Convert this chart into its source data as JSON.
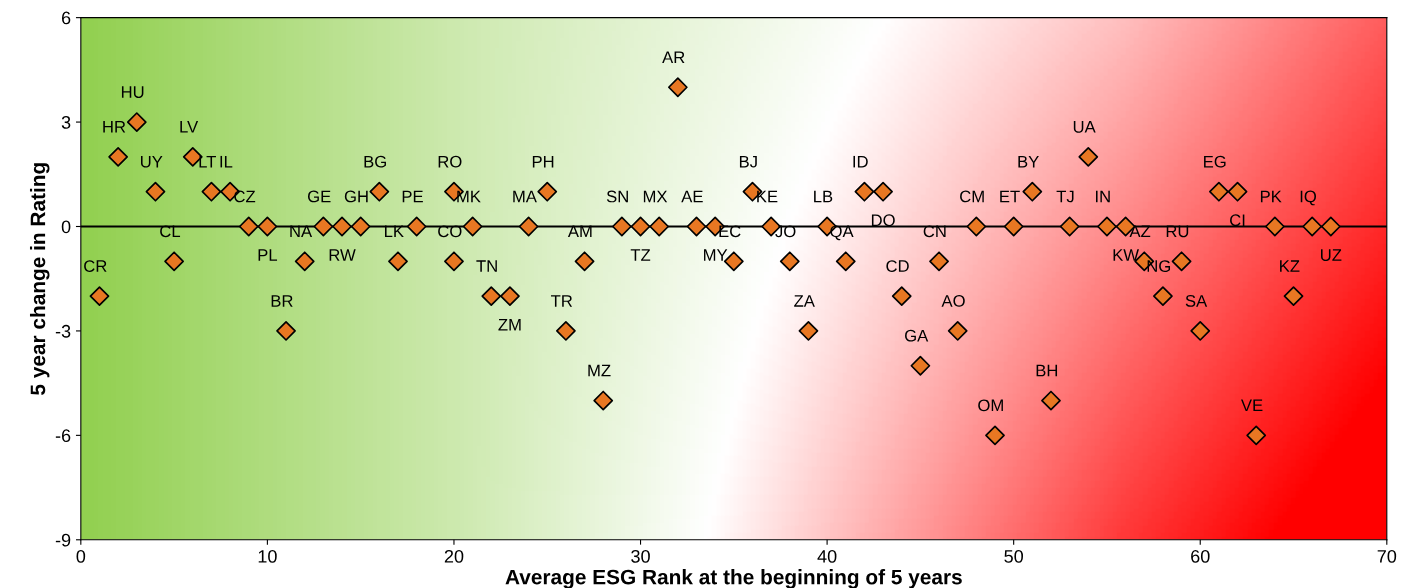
{
  "chart_data": {
    "type": "scatter",
    "xlabel": "Average ESG Rank at the beginning of 5 years",
    "ylabel": "5 year change in Rating",
    "xlim": [
      0,
      70
    ],
    "xticks": [
      0,
      10,
      20,
      30,
      40,
      50,
      60,
      70
    ],
    "ylim": [
      -9,
      6
    ],
    "yticks": [
      -9,
      -6,
      -3,
      0,
      3,
      6
    ],
    "grid": false,
    "marker": "diamond",
    "series": [
      {
        "color": "#e87722",
        "x": [
          1,
          2,
          3,
          4,
          5,
          6,
          7,
          8,
          9,
          10,
          11,
          12,
          13,
          14,
          15,
          16,
          17,
          18,
          20,
          20,
          21,
          22,
          23,
          24,
          25,
          26,
          27,
          28,
          29,
          30,
          31,
          32,
          33,
          34,
          35,
          36,
          37,
          38,
          39,
          40,
          41,
          42,
          43,
          44,
          45,
          46,
          47,
          48,
          49,
          50,
          51,
          52,
          53,
          54,
          55,
          56,
          57,
          58,
          59,
          60,
          61,
          62,
          63,
          64,
          65,
          66,
          67
        ],
        "values": [
          -2,
          2,
          3,
          1,
          -1,
          2,
          1,
          1,
          0,
          0,
          -3,
          -1,
          0,
          0,
          0,
          1,
          -1,
          0,
          1,
          -1,
          0,
          -2,
          -2,
          0,
          1,
          -3,
          -1,
          -5,
          0,
          0,
          0,
          4,
          0,
          0,
          -1,
          1,
          0,
          -1,
          -3,
          0,
          -1,
          1,
          1,
          -2,
          -4,
          -1,
          -3,
          0,
          -6,
          0,
          1,
          -5,
          0,
          2,
          0,
          0,
          -1,
          -2,
          -1,
          -3,
          1,
          1,
          -6,
          0,
          -2,
          0,
          0
        ]
      }
    ],
    "ref_lines": [
      {
        "axis": "y",
        "value": 0,
        "color": "#000000",
        "line_style": "solid"
      }
    ],
    "annotations": [
      {
        "text": "CR",
        "x": 1,
        "y": -2
      },
      {
        "text": "HR",
        "x": 2,
        "y": 2
      },
      {
        "text": "HU",
        "x": 3,
        "y": 3
      },
      {
        "text": "UY",
        "x": 4,
        "y": 1
      },
      {
        "text": "CL",
        "x": 5,
        "y": -1
      },
      {
        "text": "LV",
        "x": 6,
        "y": 2
      },
      {
        "text": "LT",
        "x": 7,
        "y": 1
      },
      {
        "text": "IL",
        "x": 8,
        "y": 1
      },
      {
        "text": "CZ",
        "x": 9,
        "y": 0
      },
      {
        "text": "PL",
        "x": 10,
        "y": 0
      },
      {
        "text": "BR",
        "x": 11,
        "y": -3
      },
      {
        "text": "NA",
        "x": 12,
        "y": -1
      },
      {
        "text": "GE",
        "x": 13,
        "y": 0
      },
      {
        "text": "RW",
        "x": 14,
        "y": 0
      },
      {
        "text": "GH",
        "x": 15,
        "y": 0
      },
      {
        "text": "BG",
        "x": 16,
        "y": 1
      },
      {
        "text": "LK",
        "x": 17,
        "y": -1
      },
      {
        "text": "PE",
        "x": 18,
        "y": 0
      },
      {
        "text": "RO",
        "x": 20,
        "y": 1
      },
      {
        "text": "CO",
        "x": 20,
        "y": -1
      },
      {
        "text": "MK",
        "x": 21,
        "y": 0
      },
      {
        "text": "TN",
        "x": 22,
        "y": -2
      },
      {
        "text": "ZM",
        "x": 23,
        "y": -2
      },
      {
        "text": "MA",
        "x": 24,
        "y": 0
      },
      {
        "text": "PH",
        "x": 25,
        "y": 1
      },
      {
        "text": "TR",
        "x": 26,
        "y": -3
      },
      {
        "text": "AM",
        "x": 27,
        "y": -1
      },
      {
        "text": "MZ",
        "x": 28,
        "y": -5
      },
      {
        "text": "SN",
        "x": 29,
        "y": 0
      },
      {
        "text": "TZ",
        "x": 30,
        "y": 0
      },
      {
        "text": "MX",
        "x": 31,
        "y": 0
      },
      {
        "text": "AR",
        "x": 32,
        "y": 4
      },
      {
        "text": "AE",
        "x": 33,
        "y": 0
      },
      {
        "text": "MY",
        "x": 34,
        "y": 0
      },
      {
        "text": "EC",
        "x": 35,
        "y": -1
      },
      {
        "text": "BJ",
        "x": 36,
        "y": 1
      },
      {
        "text": "KE",
        "x": 37,
        "y": 0
      },
      {
        "text": "JO",
        "x": 38,
        "y": -1
      },
      {
        "text": "ZA",
        "x": 39,
        "y": -3
      },
      {
        "text": "LB",
        "x": 40,
        "y": 0
      },
      {
        "text": "QA",
        "x": 41,
        "y": -1
      },
      {
        "text": "ID",
        "x": 42,
        "y": 1
      },
      {
        "text": "DO",
        "x": 43,
        "y": 1
      },
      {
        "text": "CD",
        "x": 44,
        "y": -2
      },
      {
        "text": "GA",
        "x": 45,
        "y": -4
      },
      {
        "text": "CN",
        "x": 46,
        "y": -1
      },
      {
        "text": "AO",
        "x": 47,
        "y": -3
      },
      {
        "text": "CM",
        "x": 48,
        "y": 0
      },
      {
        "text": "OM",
        "x": 49,
        "y": -6
      },
      {
        "text": "ET",
        "x": 50,
        "y": 0
      },
      {
        "text": "BY",
        "x": 51,
        "y": 1
      },
      {
        "text": "BH",
        "x": 52,
        "y": -5
      },
      {
        "text": "TJ",
        "x": 53,
        "y": 0
      },
      {
        "text": "UA",
        "x": 54,
        "y": 2
      },
      {
        "text": "IN",
        "x": 55,
        "y": 0
      },
      {
        "text": "KW",
        "x": 56,
        "y": 0
      },
      {
        "text": "AZ",
        "x": 57,
        "y": -1
      },
      {
        "text": "NG",
        "x": 58,
        "y": -2
      },
      {
        "text": "RU",
        "x": 59,
        "y": -1
      },
      {
        "text": "SA",
        "x": 60,
        "y": -3
      },
      {
        "text": "EG",
        "x": 61,
        "y": 1
      },
      {
        "text": "CI",
        "x": 62,
        "y": 1
      },
      {
        "text": "VE",
        "x": 63,
        "y": -6
      },
      {
        "text": "PK",
        "x": 64,
        "y": 0
      },
      {
        "text": "KZ",
        "x": 65,
        "y": -2
      },
      {
        "text": "IQ",
        "x": 66,
        "y": 0
      },
      {
        "text": "UZ",
        "x": 67,
        "y": 0
      }
    ]
  }
}
